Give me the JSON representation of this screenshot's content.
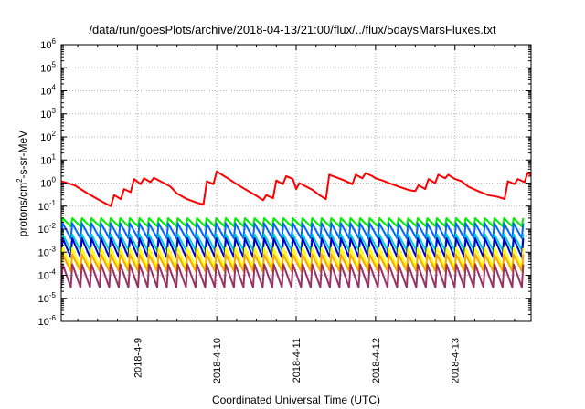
{
  "chart_data": {
    "type": "line",
    "title": "/data/run/goesPlots/archive/2018-04-13/21:00/flux/../flux/5daysMarsFluxes.txt",
    "xlabel": "Coordinated Universal Time (UTC)",
    "ylabel": {
      "prefix": "protons/cm",
      "sup": "2",
      "suffix": "-s-sr-MeV"
    },
    "y_scale": "log",
    "ylim": [
      1e-06,
      1000000.0
    ],
    "y_ticks": [
      {
        "base": "10",
        "exp": "-6",
        "value": -6
      },
      {
        "base": "10",
        "exp": "-5",
        "value": -5
      },
      {
        "base": "10",
        "exp": "-4",
        "value": -4
      },
      {
        "base": "10",
        "exp": "-3",
        "value": -3
      },
      {
        "base": "10",
        "exp": "-2",
        "value": -2
      },
      {
        "base": "10",
        "exp": "-1",
        "value": -1
      },
      {
        "base": "10",
        "exp": "0",
        "value": 0
      },
      {
        "base": "10",
        "exp": "1",
        "value": 1
      },
      {
        "base": "10",
        "exp": "2",
        "value": 2
      },
      {
        "base": "10",
        "exp": "3",
        "value": 3
      },
      {
        "base": "10",
        "exp": "4",
        "value": 4
      },
      {
        "base": "10",
        "exp": "5",
        "value": 5
      },
      {
        "base": "10",
        "exp": "6",
        "value": 6
      }
    ],
    "xlim": [
      "2018-04-08 01:00",
      "2018-04-13 23:00"
    ],
    "x_ticks": [
      {
        "label": "2018-4-9",
        "time": "2018-04-09 00:00"
      },
      {
        "label": "2018-4-10",
        "time": "2018-04-10 00:00"
      },
      {
        "label": "2018-4-11",
        "time": "2018-04-11 00:00"
      },
      {
        "label": "2018-4-12",
        "time": "2018-04-12 00:00"
      },
      {
        "label": "2018-4-13",
        "time": "2018-04-13 00:00"
      }
    ],
    "grid": true,
    "series": [
      {
        "color": "#ff0000",
        "points": [
          [
            "2018-04-08 01:00",
            1.2
          ],
          [
            "2018-04-08 05:00",
            0.8
          ],
          [
            "2018-04-08 09:00",
            0.35
          ],
          [
            "2018-04-08 12:00",
            0.2
          ],
          [
            "2018-04-08 14:00",
            0.14
          ],
          [
            "2018-04-08 16:00",
            0.1
          ],
          [
            "2018-04-08 17:00",
            0.3
          ],
          [
            "2018-04-08 19:00",
            0.2
          ],
          [
            "2018-04-08 20:00",
            0.55
          ],
          [
            "2018-04-08 22:00",
            0.4
          ],
          [
            "2018-04-08 23:00",
            1.5
          ],
          [
            "2018-04-09 01:00",
            0.9
          ],
          [
            "2018-04-09 02:00",
            1.6
          ],
          [
            "2018-04-09 04:00",
            1.1
          ],
          [
            "2018-04-09 05:00",
            1.7
          ],
          [
            "2018-04-09 08:00",
            1.0
          ],
          [
            "2018-04-09 10:00",
            0.7
          ],
          [
            "2018-04-09 12:00",
            0.35
          ],
          [
            "2018-04-09 15:00",
            0.2
          ],
          [
            "2018-04-09 18:00",
            0.14
          ],
          [
            "2018-04-09 20:00",
            0.12
          ],
          [
            "2018-04-09 21:00",
            1.2
          ],
          [
            "2018-04-09 23:00",
            0.9
          ],
          [
            "2018-04-10 00:00",
            3.2
          ],
          [
            "2018-04-10 02:00",
            2.1
          ],
          [
            "2018-04-10 04:00",
            1.4
          ],
          [
            "2018-04-10 06:00",
            0.9
          ],
          [
            "2018-04-10 09:00",
            0.5
          ],
          [
            "2018-04-10 12:00",
            0.28
          ],
          [
            "2018-04-10 14:00",
            0.18
          ],
          [
            "2018-04-10 15:00",
            0.3
          ],
          [
            "2018-04-10 17:00",
            0.22
          ],
          [
            "2018-04-10 18:00",
            1.3
          ],
          [
            "2018-04-10 20:00",
            0.9
          ],
          [
            "2018-04-10 21:00",
            2.0
          ],
          [
            "2018-04-10 23:00",
            1.5
          ],
          [
            "2018-04-11 00:00",
            0.55
          ],
          [
            "2018-04-11 01:00",
            1.0
          ],
          [
            "2018-04-11 03:00",
            0.7
          ],
          [
            "2018-04-11 05:00",
            0.5
          ],
          [
            "2018-04-11 07:00",
            0.3
          ],
          [
            "2018-04-11 09:00",
            0.2
          ],
          [
            "2018-04-11 10:00",
            2.3
          ],
          [
            "2018-04-11 14:00",
            1.4
          ],
          [
            "2018-04-11 17:00",
            0.9
          ],
          [
            "2018-04-11 18:00",
            2.3
          ],
          [
            "2018-04-11 20:00",
            1.6
          ],
          [
            "2018-04-11 21:00",
            2.7
          ],
          [
            "2018-04-11 23:00",
            2.0
          ],
          [
            "2018-04-12 00:00",
            1.6
          ],
          [
            "2018-04-12 02:00",
            1.3
          ],
          [
            "2018-04-12 04:00",
            1.0
          ],
          [
            "2018-04-12 07:00",
            0.7
          ],
          [
            "2018-04-12 10:00",
            0.5
          ],
          [
            "2018-04-12 12:00",
            0.45
          ],
          [
            "2018-04-12 13:00",
            0.8
          ],
          [
            "2018-04-12 15:00",
            0.55
          ],
          [
            "2018-04-12 16:00",
            1.5
          ],
          [
            "2018-04-12 18:00",
            1.0
          ],
          [
            "2018-04-12 19:00",
            2.3
          ],
          [
            "2018-04-12 21:00",
            1.6
          ],
          [
            "2018-04-12 22:00",
            2.3
          ],
          [
            "2018-04-13 00:00",
            1.5
          ],
          [
            "2018-04-13 02:00",
            1.2
          ],
          [
            "2018-04-13 04:00",
            0.7
          ],
          [
            "2018-04-13 07:00",
            0.45
          ],
          [
            "2018-04-13 10:00",
            0.3
          ],
          [
            "2018-04-13 13:00",
            0.25
          ],
          [
            "2018-04-13 15:00",
            0.2
          ],
          [
            "2018-04-13 16:00",
            1.2
          ],
          [
            "2018-04-13 18:00",
            0.9
          ],
          [
            "2018-04-13 19:00",
            1.5
          ],
          [
            "2018-04-13 21:00",
            1.1
          ],
          [
            "2018-04-13 22:00",
            2.8
          ],
          [
            "2018-04-13 23:00",
            2.2
          ]
        ]
      },
      {
        "color": "#00ee00",
        "sawtooth": {
          "peak": 0.03,
          "trough": 0.013,
          "period_hours": 2.9
        }
      },
      {
        "color": "#0066ff",
        "sawtooth": {
          "peak": 0.018,
          "trough": 0.004,
          "period_hours": 2.9
        }
      },
      {
        "color": "#00d2d2",
        "sawtooth": {
          "peak": 0.006,
          "trough": 0.0012,
          "period_hours": 2.9
        }
      },
      {
        "color": "#0000cc",
        "sawtooth": {
          "peak": 0.004,
          "trough": 0.0006,
          "period_hours": 2.9
        }
      },
      {
        "color": "#ffff00",
        "sawtooth": {
          "peak": 0.0015,
          "trough": 0.0002,
          "period_hours": 2.9
        }
      },
      {
        "color": "#ffa500",
        "sawtooth": {
          "peak": 0.0008,
          "trough": 0.00015,
          "period_hours": 2.9
        }
      },
      {
        "color": "#993366",
        "sawtooth": {
          "peak": 0.0003,
          "trough": 3e-05,
          "period_hours": 2.9
        }
      }
    ]
  }
}
